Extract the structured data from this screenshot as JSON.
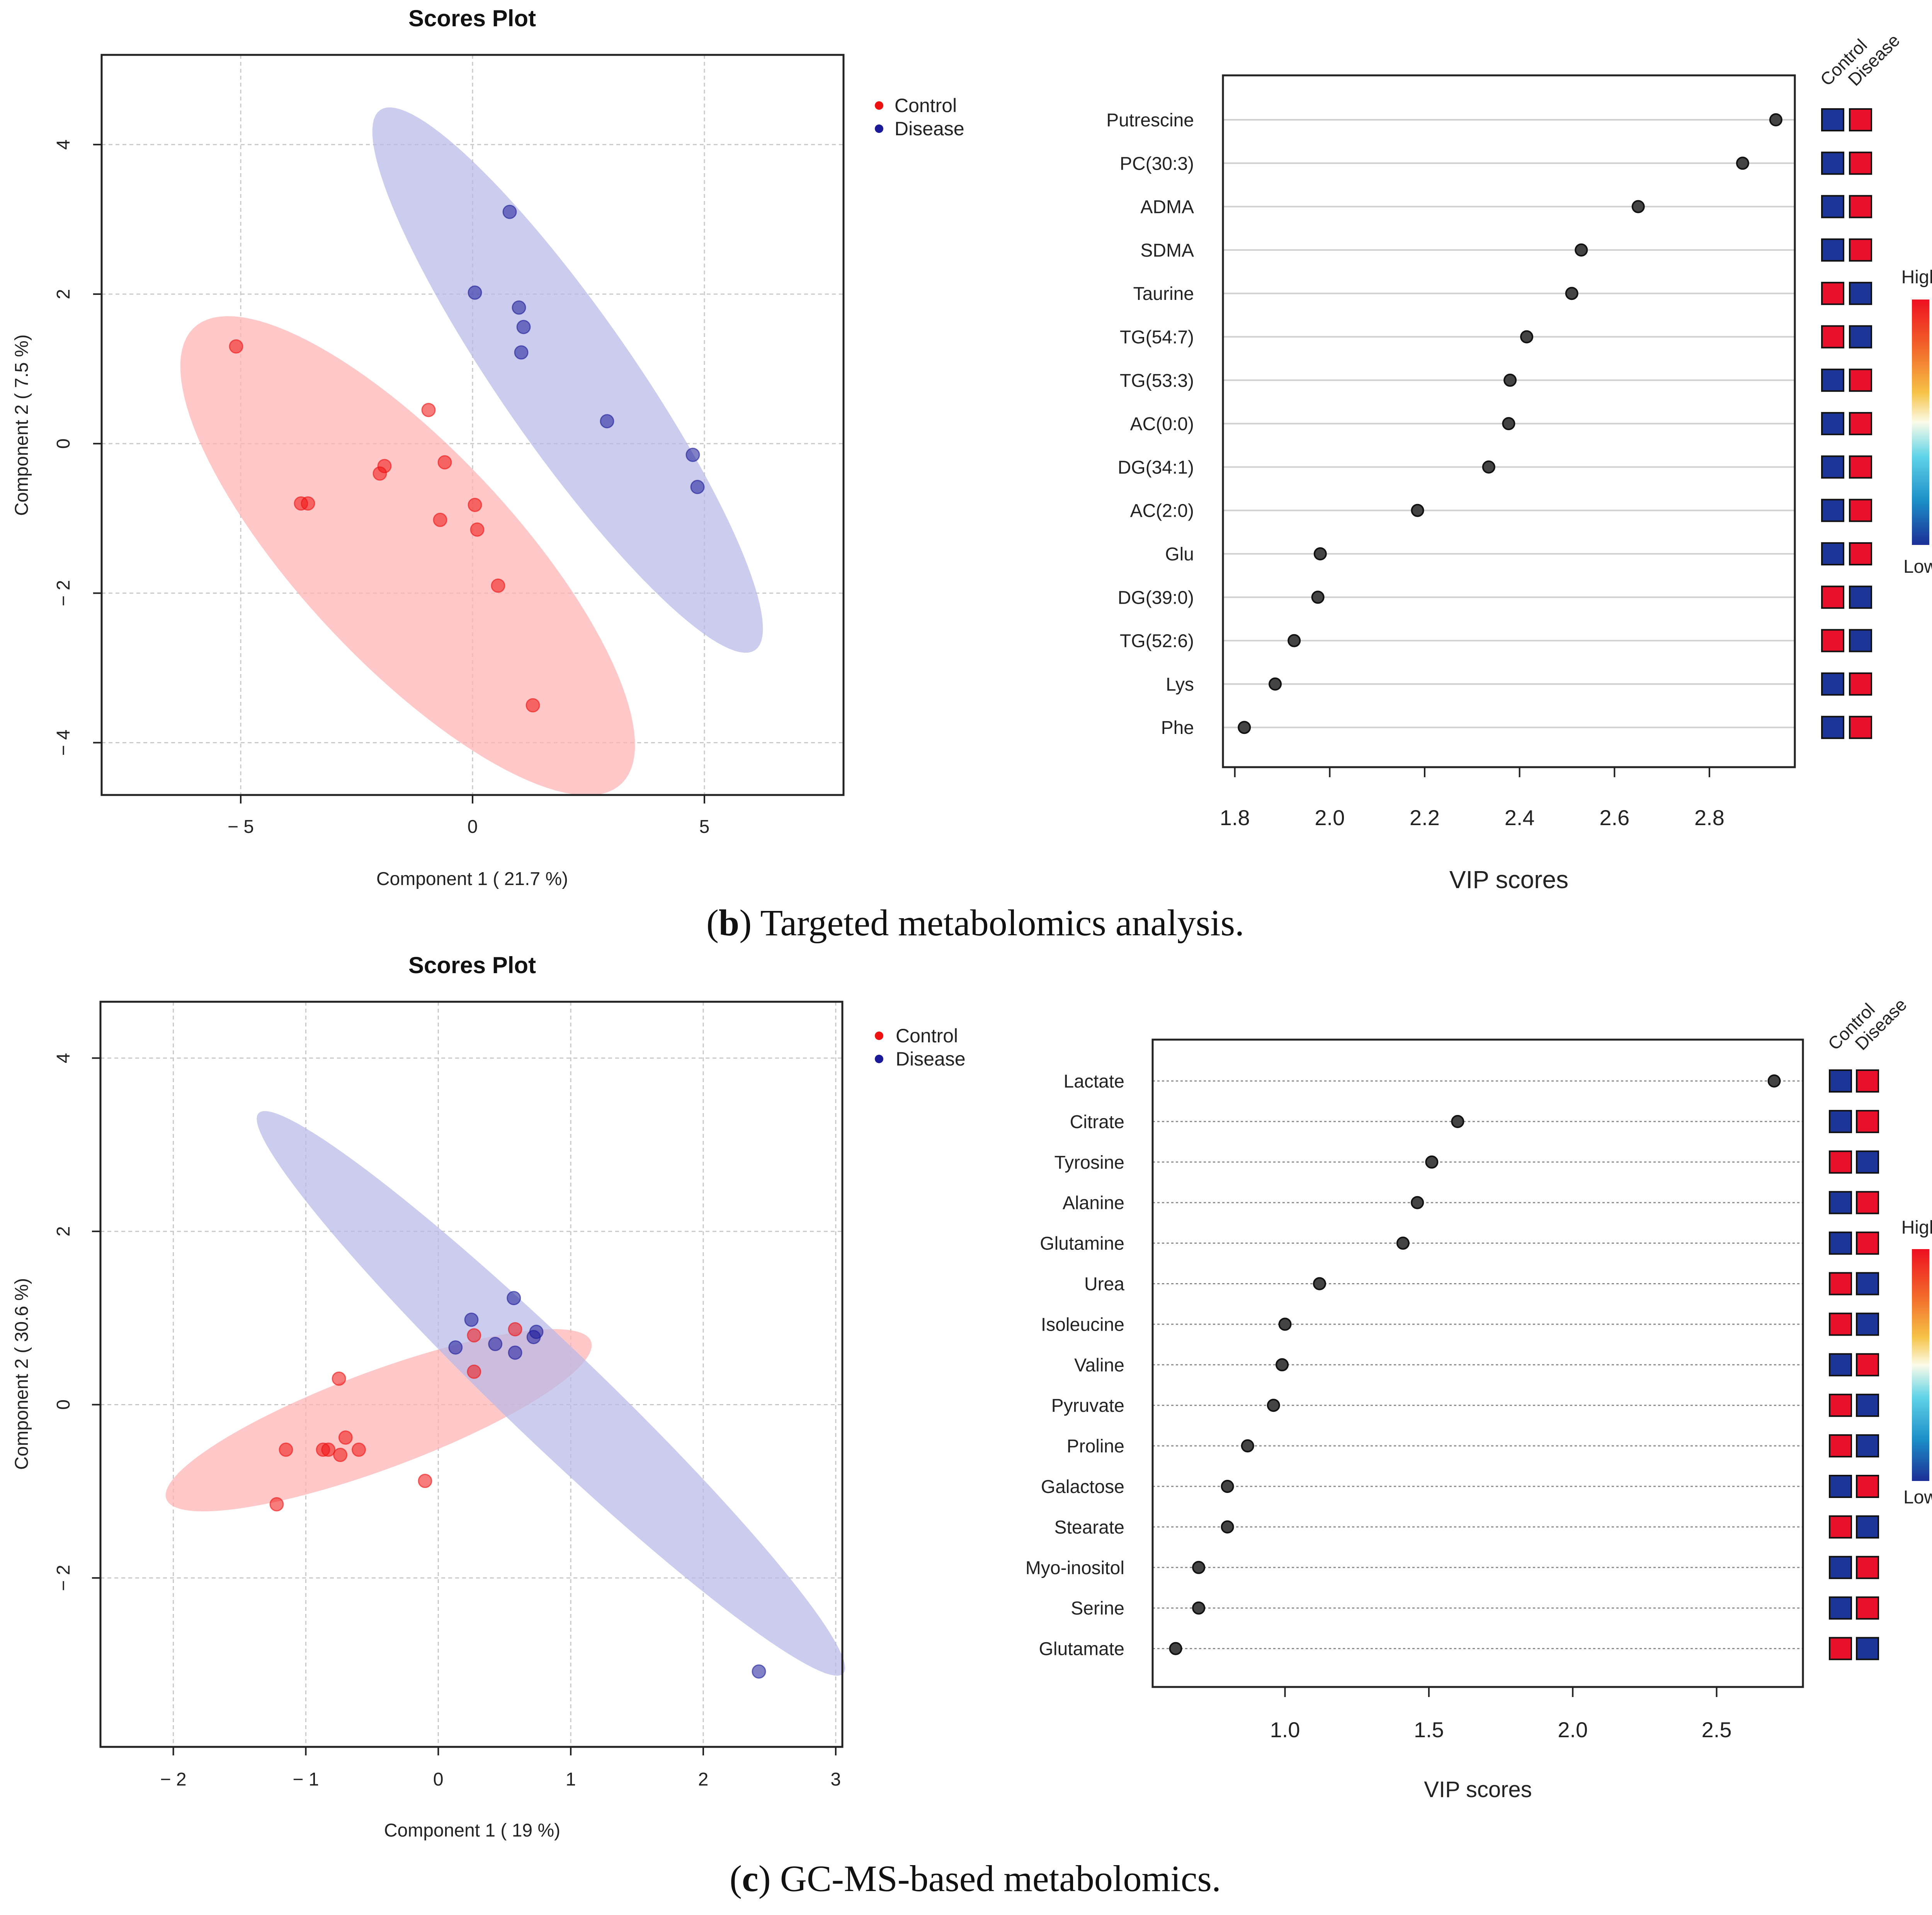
{
  "panel_b": {
    "caption_letter": "b",
    "caption_text": " Targeted metabolomics analysis.",
    "scores": {
      "title": "Scores Plot",
      "xlabel": "Component 1 ( 21.7 %)",
      "ylabel": "Component 2 ( 7.5 %)"
    },
    "vip": {
      "xlabel": "VIP scores",
      "header_control": "Control",
      "header_disease": "Disease",
      "high_label": "High",
      "low_label": "Low"
    }
  },
  "panel_c": {
    "caption_letter": "c",
    "caption_text": " GC-MS-based metabolomics.",
    "scores": {
      "title": "Scores Plot",
      "xlabel": "Component 1 ( 19 %)",
      "ylabel": "Component 2 ( 30.6 %)"
    },
    "vip": {
      "xlabel": "VIP scores",
      "header_control": "Control",
      "header_disease": "Disease",
      "high_label": "High",
      "low_label": "Low"
    }
  },
  "colors": {
    "control": "#ee1111",
    "disease": "#1a1a99",
    "control_fill": "#ffb3b3",
    "disease_fill": "#b8b8e8",
    "high": "#e8102a",
    "low": "#1c3596"
  },
  "chart_data": [
    {
      "id": "b-scores",
      "type": "scatter",
      "title": "Scores Plot",
      "xlabel": "Component 1 ( 21.7 %)",
      "ylabel": "Component 2 ( 7.5 %)",
      "xlim": [
        -8,
        8
      ],
      "ylim": [
        -4.7,
        5.2
      ],
      "xticks": [
        -5,
        0,
        5
      ],
      "yticks": [
        -4,
        -2,
        0,
        2,
        4
      ],
      "legend": [
        "Control",
        "Disease"
      ],
      "series": [
        {
          "name": "Control",
          "points": [
            [
              -5.1,
              1.3
            ],
            [
              -0.95,
              0.45
            ],
            [
              -2.0,
              -0.4
            ],
            [
              -1.9,
              -0.3
            ],
            [
              -0.6,
              -0.25
            ],
            [
              -3.7,
              -0.8
            ],
            [
              -3.55,
              -0.8
            ],
            [
              0.05,
              -0.82
            ],
            [
              -0.7,
              -1.02
            ],
            [
              0.1,
              -1.15
            ],
            [
              0.55,
              -1.9
            ],
            [
              1.3,
              -3.5
            ]
          ]
        },
        {
          "name": "Disease",
          "points": [
            [
              0.8,
              3.1
            ],
            [
              0.05,
              2.02
            ],
            [
              1.0,
              1.82
            ],
            [
              1.1,
              1.56
            ],
            [
              1.05,
              1.22
            ],
            [
              2.9,
              0.3
            ],
            [
              4.75,
              -0.15
            ],
            [
              4.85,
              -0.58
            ]
          ]
        }
      ],
      "ellipses": [
        {
          "group": "Control",
          "center": [
            -1.4,
            -1.5
          ],
          "rx": 5.6,
          "ry": 1.72,
          "angle_deg": -30.5
        },
        {
          "group": "Disease",
          "center": [
            2.05,
            0.85
          ],
          "rx": 5.45,
          "ry": 1.16,
          "angle_deg": -40.5
        }
      ]
    },
    {
      "id": "b-vip",
      "type": "dot",
      "xlabel": "VIP scores",
      "xlim": [
        1.775,
        2.98
      ],
      "xticks": [
        "1.8",
        "2.0",
        "2.2",
        "2.4",
        "2.6",
        "2.8"
      ],
      "categories": [
        "Putrescine",
        "PC(30:3)",
        "ADMA",
        "SDMA",
        "Taurine",
        "TG(54:7)",
        "TG(53:3)",
        "AC(0:0)",
        "DG(34:1)",
        "AC(2:0)",
        "Glu",
        "DG(39:0)",
        "TG(52:6)",
        "Lys",
        "Phe"
      ],
      "values": [
        2.94,
        2.87,
        2.65,
        2.53,
        2.51,
        2.415,
        2.38,
        2.377,
        2.335,
        2.185,
        1.98,
        1.975,
        1.925,
        1.885,
        1.82
      ],
      "heat": [
        [
          "low",
          "high"
        ],
        [
          "low",
          "high"
        ],
        [
          "low",
          "high"
        ],
        [
          "low",
          "high"
        ],
        [
          "high",
          "low"
        ],
        [
          "high",
          "low"
        ],
        [
          "low",
          "high"
        ],
        [
          "low",
          "high"
        ],
        [
          "low",
          "high"
        ],
        [
          "low",
          "high"
        ],
        [
          "low",
          "high"
        ],
        [
          "high",
          "low"
        ],
        [
          "high",
          "low"
        ],
        [
          "low",
          "high"
        ],
        [
          "low",
          "high"
        ]
      ],
      "legend_columns": [
        "Control",
        "Disease"
      ],
      "color_scale": [
        "High",
        "Low"
      ]
    },
    {
      "id": "c-scores",
      "type": "scatter",
      "title": "Scores Plot",
      "xlabel": "Component 1 ( 19 %)",
      "ylabel": "Component 2 ( 30.6 %)",
      "xlim": [
        -2.55,
        3.05
      ],
      "ylim": [
        -3.95,
        4.65
      ],
      "xticks": [
        -2,
        -1,
        0,
        1,
        2,
        3
      ],
      "yticks": [
        -2,
        0,
        2,
        4
      ],
      "legend": [
        "Control",
        "Disease"
      ],
      "series": [
        {
          "name": "Control",
          "points": [
            [
              -0.75,
              0.3
            ],
            [
              -1.15,
              -0.52
            ],
            [
              -0.87,
              -0.52
            ],
            [
              -0.83,
              -0.52
            ],
            [
              -0.7,
              -0.38
            ],
            [
              -0.74,
              -0.58
            ],
            [
              -0.6,
              -0.52
            ],
            [
              -1.22,
              -1.15
            ],
            [
              -0.1,
              -0.88
            ],
            [
              0.27,
              0.8
            ],
            [
              0.27,
              0.38
            ],
            [
              0.58,
              0.87
            ]
          ]
        },
        {
          "name": "Disease",
          "points": [
            [
              0.57,
              1.23
            ],
            [
              0.25,
              0.98
            ],
            [
              0.13,
              0.66
            ],
            [
              0.43,
              0.7
            ],
            [
              0.58,
              0.6
            ],
            [
              0.72,
              0.78
            ],
            [
              0.74,
              0.84
            ],
            [
              2.42,
              -3.08
            ]
          ]
        }
      ],
      "ellipses": [
        {
          "group": "Control",
          "center": [
            -0.45,
            -0.18
          ],
          "rx": 1.85,
          "ry": 0.52,
          "angle_deg": 31
        },
        {
          "group": "Disease",
          "center": [
            0.85,
            0.13
          ],
          "rx": 3.92,
          "ry": 0.43,
          "angle_deg": -56
        }
      ]
    },
    {
      "id": "c-vip",
      "type": "dot",
      "xlabel": "VIP scores",
      "xlim": [
        0.54,
        2.8
      ],
      "xticks": [
        "1.0",
        "1.5",
        "2.0",
        "2.5"
      ],
      "categories": [
        "Lactate",
        "Citrate",
        "Tyrosine",
        "Alanine",
        "Glutamine",
        "Urea",
        "Isoleucine",
        "Valine",
        "Pyruvate",
        "Proline",
        "Galactose",
        "Stearate",
        "Myo-inositol",
        "Serine",
        "Glutamate"
      ],
      "values": [
        2.7,
        1.6,
        1.51,
        1.46,
        1.41,
        1.12,
        1.0,
        0.99,
        0.96,
        0.87,
        0.8,
        0.8,
        0.7,
        0.7,
        0.62
      ],
      "heat": [
        [
          "low",
          "high"
        ],
        [
          "low",
          "high"
        ],
        [
          "high",
          "low"
        ],
        [
          "low",
          "high"
        ],
        [
          "low",
          "high"
        ],
        [
          "high",
          "low"
        ],
        [
          "high",
          "low"
        ],
        [
          "low",
          "high"
        ],
        [
          "high",
          "low"
        ],
        [
          "high",
          "low"
        ],
        [
          "low",
          "high"
        ],
        [
          "high",
          "low"
        ],
        [
          "low",
          "high"
        ],
        [
          "low",
          "high"
        ],
        [
          "high",
          "low"
        ]
      ],
      "legend_columns": [
        "Control",
        "Disease"
      ],
      "color_scale": [
        "High",
        "Low"
      ]
    }
  ]
}
